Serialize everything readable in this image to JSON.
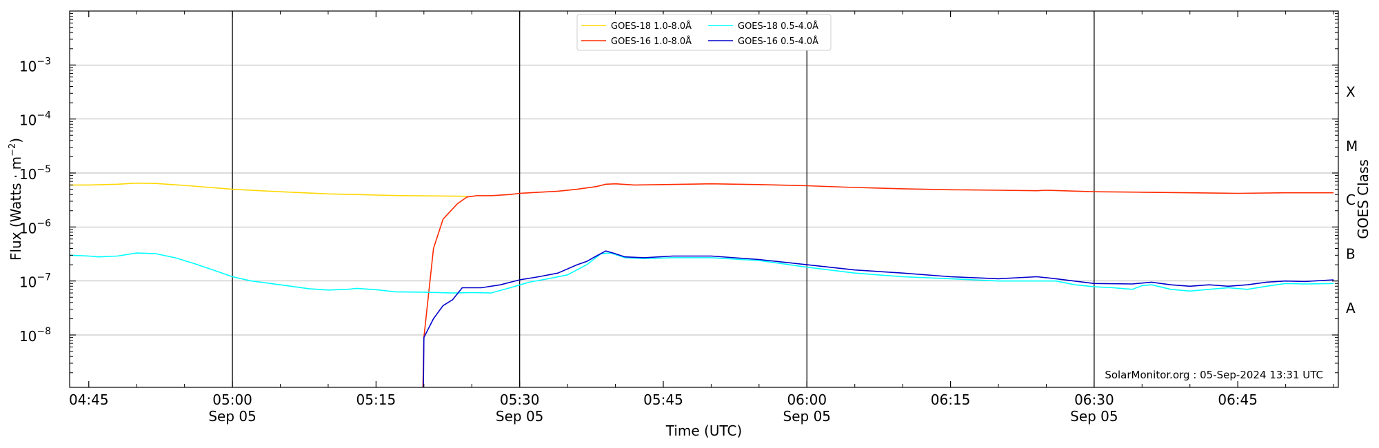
{
  "chart_data": {
    "type": "line",
    "xlabel": "Time (UTC)",
    "ylabel_main": "Flux (Watts · m",
    "ylabel_sup": "−2",
    "ylabel_close": ")",
    "right_label": "GOES Class",
    "credit": "SolarMonitor.org : 05-Sep-2024 13:31 UTC",
    "x_range_minutes": [
      283,
      415.5
    ],
    "y_log_range": [
      -8.97,
      -2.0
    ],
    "grid": "horizontal",
    "yticks": [
      {
        "exp": -8,
        "label": "10",
        "sup": "−8"
      },
      {
        "exp": -7,
        "label": "10",
        "sup": "−7"
      },
      {
        "exp": -6,
        "label": "10",
        "sup": "−6"
      },
      {
        "exp": -5,
        "label": "10",
        "sup": "−5"
      },
      {
        "exp": -4,
        "label": "10",
        "sup": "−4"
      },
      {
        "exp": -3,
        "label": "10",
        "sup": "−3"
      }
    ],
    "xticks": [
      {
        "t": 285,
        "line1": "04:45",
        "line2": ""
      },
      {
        "t": 300,
        "line1": "05:00",
        "line2": "Sep 05"
      },
      {
        "t": 315,
        "line1": "05:15",
        "line2": ""
      },
      {
        "t": 330,
        "line1": "05:30",
        "line2": "Sep 05"
      },
      {
        "t": 345,
        "line1": "05:45",
        "line2": ""
      },
      {
        "t": 360,
        "line1": "06:00",
        "line2": "Sep 05"
      },
      {
        "t": 375,
        "line1": "06:15",
        "line2": ""
      },
      {
        "t": 390,
        "line1": "06:30",
        "line2": "Sep 05"
      },
      {
        "t": 405,
        "line1": "06:45",
        "line2": ""
      }
    ],
    "vlines": [
      300,
      330,
      360,
      390
    ],
    "classes": [
      {
        "label": "X",
        "exp": -3.5
      },
      {
        "label": "M",
        "exp": -4.5
      },
      {
        "label": "C",
        "exp": -5.5
      },
      {
        "label": "B",
        "exp": -6.5
      },
      {
        "label": "A",
        "exp": -7.5
      }
    ],
    "series": [
      {
        "name": "GOES-18 1.0-8.0Å",
        "color": "#ffd700",
        "points": [
          [
            283,
            6e-06
          ],
          [
            285,
            6e-06
          ],
          [
            288,
            6.2e-06
          ],
          [
            290,
            6.5e-06
          ],
          [
            292,
            6.4e-06
          ],
          [
            295,
            5.9e-06
          ],
          [
            300,
            5e-06
          ],
          [
            305,
            4.5e-06
          ],
          [
            310,
            4.1e-06
          ],
          [
            313,
            4e-06
          ],
          [
            315,
            3.9e-06
          ],
          [
            318,
            3.8e-06
          ],
          [
            322,
            3.75e-06
          ],
          [
            324.5,
            3.7e-06
          ]
        ]
      },
      {
        "name": "GOES-16 1.0-8.0Å",
        "color": "#ff2a00",
        "points": [
          [
            319.9,
            1e-09
          ],
          [
            320.0,
            9e-09
          ],
          [
            321.0,
            4e-07
          ],
          [
            322.0,
            1.4e-06
          ],
          [
            323.5,
            2.7e-06
          ],
          [
            324.5,
            3.6e-06
          ],
          [
            325.5,
            3.8e-06
          ],
          [
            327,
            3.8e-06
          ],
          [
            329,
            4e-06
          ],
          [
            330,
            4.2e-06
          ],
          [
            332,
            4.4e-06
          ],
          [
            334,
            4.6e-06
          ],
          [
            336,
            5e-06
          ],
          [
            338,
            5.6e-06
          ],
          [
            339,
            6.2e-06
          ],
          [
            340,
            6.3e-06
          ],
          [
            342,
            6e-06
          ],
          [
            345,
            6.1e-06
          ],
          [
            350,
            6.3e-06
          ],
          [
            355,
            6.1e-06
          ],
          [
            360,
            5.8e-06
          ],
          [
            365,
            5.4e-06
          ],
          [
            370,
            5.1e-06
          ],
          [
            375,
            4.9e-06
          ],
          [
            380,
            4.8e-06
          ],
          [
            384,
            4.7e-06
          ],
          [
            385,
            4.8e-06
          ],
          [
            390,
            4.5e-06
          ],
          [
            395,
            4.4e-06
          ],
          [
            400,
            4.3e-06
          ],
          [
            405,
            4.2e-06
          ],
          [
            410,
            4.3e-06
          ],
          [
            415,
            4.3e-06
          ]
        ]
      },
      {
        "name": "GOES-18 0.5-4.0Å",
        "color": "#00ffff",
        "points": [
          [
            283,
            3e-07
          ],
          [
            285,
            2.9e-07
          ],
          [
            286,
            2.8e-07
          ],
          [
            288,
            2.9e-07
          ],
          [
            290,
            3.3e-07
          ],
          [
            292,
            3.2e-07
          ],
          [
            294,
            2.7e-07
          ],
          [
            296,
            2.1e-07
          ],
          [
            298,
            1.6e-07
          ],
          [
            300,
            1.2e-07
          ],
          [
            302,
            1e-07
          ],
          [
            305,
            8.5e-08
          ],
          [
            308,
            7.2e-08
          ],
          [
            310,
            6.8e-08
          ],
          [
            312,
            7e-08
          ],
          [
            313,
            7.3e-08
          ],
          [
            315,
            6.9e-08
          ],
          [
            317,
            6.3e-08
          ],
          [
            320,
            6.2e-08
          ],
          [
            323,
            6e-08
          ],
          [
            325,
            6.1e-08
          ],
          [
            327,
            6e-08
          ],
          [
            329,
            7.5e-08
          ],
          [
            331,
            9.5e-08
          ],
          [
            333,
            1.1e-07
          ],
          [
            335,
            1.3e-07
          ],
          [
            337,
            2e-07
          ],
          [
            338.5,
            3.2e-07
          ],
          [
            339.5,
            3.3e-07
          ],
          [
            341,
            2.7e-07
          ],
          [
            343,
            2.6e-07
          ],
          [
            346,
            2.7e-07
          ],
          [
            350,
            2.7e-07
          ],
          [
            355,
            2.4e-07
          ],
          [
            360,
            1.8e-07
          ],
          [
            365,
            1.4e-07
          ],
          [
            370,
            1.2e-07
          ],
          [
            375,
            1.1e-07
          ],
          [
            380,
            1e-07
          ],
          [
            384,
            1e-07
          ],
          [
            386,
            1e-07
          ],
          [
            388,
            8.5e-08
          ],
          [
            390,
            7.8e-08
          ],
          [
            392,
            7.5e-08
          ],
          [
            394,
            7e-08
          ],
          [
            395,
            8.2e-08
          ],
          [
            396,
            8.5e-08
          ],
          [
            398,
            7e-08
          ],
          [
            400,
            6.5e-08
          ],
          [
            402,
            7e-08
          ],
          [
            404,
            7.5e-08
          ],
          [
            406,
            7e-08
          ],
          [
            408,
            8e-08
          ],
          [
            410,
            9e-08
          ],
          [
            412,
            8.8e-08
          ],
          [
            415,
            9e-08
          ]
        ]
      },
      {
        "name": "GOES-16 0.5-4.0Å",
        "color": "#0000cc",
        "points": [
          [
            319.95,
            1e-09
          ],
          [
            320.0,
            9e-09
          ],
          [
            321.0,
            2e-08
          ],
          [
            322.0,
            3.5e-08
          ],
          [
            323.0,
            4.5e-08
          ],
          [
            324.0,
            7.5e-08
          ],
          [
            326,
            7.5e-08
          ],
          [
            328,
            8.5e-08
          ],
          [
            330,
            1.05e-07
          ],
          [
            332,
            1.2e-07
          ],
          [
            334,
            1.4e-07
          ],
          [
            336,
            2e-07
          ],
          [
            337,
            2.3e-07
          ],
          [
            338,
            2.9e-07
          ],
          [
            339,
            3.6e-07
          ],
          [
            340,
            3.2e-07
          ],
          [
            341,
            2.8e-07
          ],
          [
            343,
            2.7e-07
          ],
          [
            346,
            2.9e-07
          ],
          [
            350,
            2.9e-07
          ],
          [
            355,
            2.5e-07
          ],
          [
            360,
            2e-07
          ],
          [
            365,
            1.6e-07
          ],
          [
            370,
            1.4e-07
          ],
          [
            375,
            1.2e-07
          ],
          [
            380,
            1.1e-07
          ],
          [
            384,
            1.2e-07
          ],
          [
            386,
            1.1e-07
          ],
          [
            390,
            9e-08
          ],
          [
            394,
            8.8e-08
          ],
          [
            396,
            9.5e-08
          ],
          [
            398,
            8.5e-08
          ],
          [
            400,
            8e-08
          ],
          [
            402,
            8.5e-08
          ],
          [
            404,
            8e-08
          ],
          [
            406,
            8.5e-08
          ],
          [
            408,
            9.5e-08
          ],
          [
            410,
            1e-07
          ],
          [
            412,
            9.8e-08
          ],
          [
            415,
            1.05e-07
          ]
        ]
      }
    ]
  }
}
